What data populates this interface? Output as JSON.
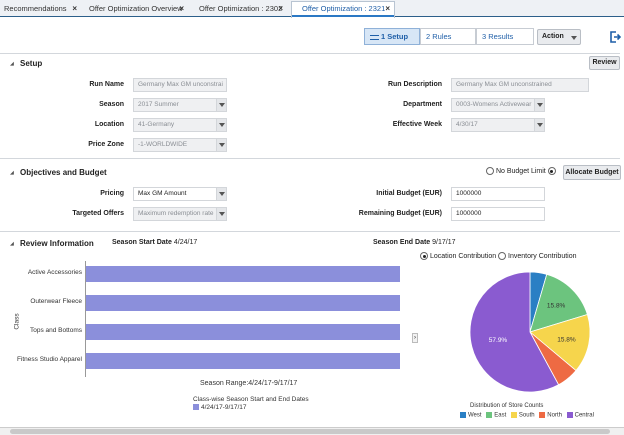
{
  "tabs": [
    {
      "label": "Recommendations"
    },
    {
      "label": "Offer Optimization Overview"
    },
    {
      "label": "Offer Optimization : 2302"
    },
    {
      "label": "Offer Optimization : 2321"
    }
  ],
  "toolbar": {
    "steps": [
      "1 Setup",
      "2 Rules",
      "3 Results"
    ],
    "action_label": "Action"
  },
  "setup": {
    "title": "Setup",
    "review_button": "Review",
    "run_name_label": "Run Name",
    "run_name_value": "Germany Max GM unconstrai",
    "season_label": "Season",
    "season_value": "2017 Summer",
    "location_label": "Location",
    "location_value": "41-Germany",
    "price_zone_label": "Price Zone",
    "price_zone_value": "-1-WORLDWIDE",
    "run_description_label": "Run Description",
    "run_description_value": "Germany Max GM unconstrained",
    "department_label": "Department",
    "department_value": "0003-Womens Activewear",
    "effective_week_label": "Effective Week",
    "effective_week_value": "4/30/17"
  },
  "objectives": {
    "title": "Objectives and Budget",
    "no_budget_label": "No Budget Limit",
    "allocate_button": "Allocate Budget",
    "pricing_label": "Pricing",
    "pricing_value": "Max GM Amount",
    "targeted_offers_label": "Targeted Offers",
    "targeted_offers_value": "Maximum redemption rate",
    "initial_budget_label": "Initial Budget (EUR)",
    "initial_budget_value": "1000000",
    "remaining_budget_label": "Remaining Budget (EUR)",
    "remaining_budget_value": "1000000"
  },
  "review": {
    "title": "Review Information",
    "season_start_label": "Season Start Date",
    "season_start_value": "4/24/17",
    "season_end_label": "Season End Date",
    "season_end_value": "9/17/17",
    "location_contribution_label": "Location Contribution",
    "inventory_contribution_label": "Inventory Contribution"
  },
  "chart_data": [
    {
      "type": "bar",
      "orientation": "horizontal",
      "categories": [
        "Active Accessories",
        "Outerwear Fleece",
        "Tops and Bottoms",
        "Fitness Studio Apparel"
      ],
      "range_label": "4/24/17-9/17/17",
      "ylabel": "Class",
      "xlabel": "Season Range:4/24/17-9/17/17",
      "legend_title": "Class-wise Season Start and End Dates",
      "legend_entry": "4/24/17-9/17/17",
      "color": "#8b8fdb"
    },
    {
      "type": "pie",
      "title": "Distribution of Store Counts",
      "labels": [
        "West",
        "East",
        "South",
        "North",
        "Central"
      ],
      "values": [
        4.5,
        15.8,
        15.8,
        6.0,
        57.9
      ],
      "value_labels": [
        "",
        "15.8%",
        "15.8%",
        "",
        "57.9%"
      ],
      "colors": [
        "#2a7fc4",
        "#6cc47e",
        "#f6d54c",
        "#ee6a43",
        "#8a5bd0"
      ]
    }
  ]
}
